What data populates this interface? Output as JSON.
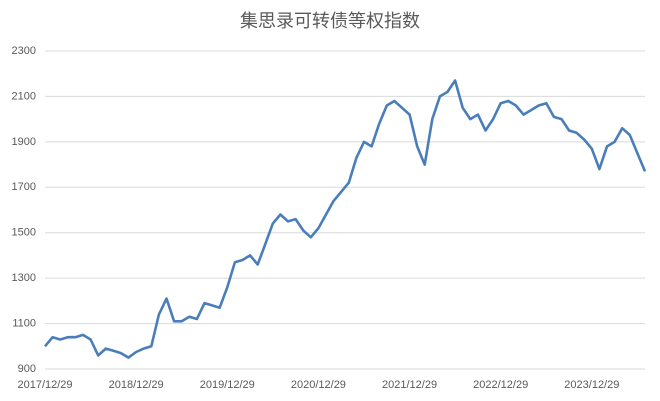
{
  "chart_data": {
    "type": "line",
    "title": "集思录可转债等权指数",
    "categories": [
      "2017/12/29",
      null,
      null,
      null,
      null,
      null,
      null,
      null,
      null,
      null,
      null,
      null,
      "2018/12/29",
      null,
      null,
      null,
      null,
      null,
      null,
      null,
      null,
      null,
      null,
      null,
      "2019/12/29",
      null,
      null,
      null,
      null,
      null,
      null,
      null,
      null,
      null,
      null,
      null,
      "2020/12/29",
      null,
      null,
      null,
      null,
      null,
      null,
      null,
      null,
      null,
      null,
      null,
      "2021/12/29",
      null,
      null,
      null,
      null,
      null,
      null,
      null,
      null,
      null,
      null,
      null,
      "2022/12/29",
      null,
      null,
      null,
      null,
      null,
      null,
      null,
      null,
      null,
      null,
      null,
      "2023/12/29",
      null,
      null,
      null,
      null,
      null,
      null,
      null
    ],
    "series": [
      {
        "name": "集思录可转债等权指数",
        "color": "#4a7ebb",
        "values": [
          1000,
          1040,
          1030,
          1040,
          1040,
          1050,
          1030,
          960,
          990,
          980,
          970,
          950,
          975,
          990,
          1000,
          1140,
          1210,
          1110,
          1110,
          1130,
          1120,
          1190,
          1180,
          1170,
          1260,
          1370,
          1380,
          1400,
          1360,
          1450,
          1540,
          1580,
          1550,
          1560,
          1510,
          1480,
          1520,
          1580,
          1640,
          1680,
          1720,
          1830,
          1900,
          1880,
          1980,
          2060,
          2080,
          2050,
          2020,
          1880,
          1800,
          2000,
          2100,
          2120,
          2170,
          2050,
          2000,
          2020,
          1950,
          2000,
          2070,
          2080,
          2060,
          2020,
          2040,
          2060,
          2070,
          2010,
          2000,
          1950,
          1940,
          1910,
          1870,
          1780,
          1880,
          1900,
          1960,
          1930,
          1850,
          1770
        ]
      }
    ],
    "ylim": [
      900,
      2300
    ],
    "yticks": [
      900,
      1100,
      1300,
      1500,
      1700,
      1900,
      2100,
      2300
    ],
    "grid": true
  }
}
